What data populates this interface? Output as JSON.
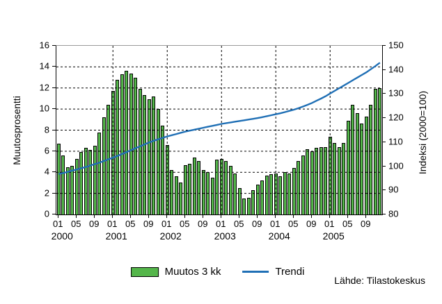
{
  "legend": {
    "bars_label": "Muutos 3 kk",
    "trend_label": "Trendi"
  },
  "source_label": "Lähde: Tilastokeskus",
  "colors": {
    "bar_fill": "#54B64A",
    "bar_border": "#000000",
    "trend_line": "#1F6FB5",
    "grid_line": "#000000",
    "frame_top": "#9a9a9a"
  },
  "chart_data": {
    "type": "bar",
    "title": "",
    "xlabel": "",
    "left_axis": {
      "label": "Muutosprosentti",
      "min": 0,
      "max": 16,
      "ticks": [
        0,
        2,
        4,
        6,
        8,
        10,
        12,
        14,
        16
      ]
    },
    "right_axis": {
      "label": "Indeksi (2000=100)",
      "min": 80,
      "max": 150,
      "ticks": [
        80,
        90,
        100,
        110,
        120,
        130,
        140,
        150
      ]
    },
    "x_axis": {
      "years": [
        "2000",
        "2001",
        "2002",
        "2003",
        "2004",
        "2005"
      ],
      "month_tick_labels": [
        "01",
        "05",
        "09"
      ],
      "month_tick_offsets": [
        0,
        4,
        8
      ],
      "months_per_year": 12
    },
    "grid": "dashed horizontal at every left tick, dashed vertical at every January",
    "legend_position": "bottom-center",
    "series": [
      {
        "name": "Muutos 3 kk",
        "type": "bar",
        "axis": "left",
        "values": [
          6.7,
          5.6,
          4.5,
          4.6,
          5.3,
          5.9,
          6.3,
          6.1,
          6.5,
          7.8,
          9.2,
          10.4,
          11.7,
          12.8,
          13.3,
          13.6,
          13.4,
          13.0,
          11.9,
          11.3,
          10.9,
          11.2,
          10.0,
          8.4,
          6.6,
          4.2,
          3.6,
          3.0,
          4.7,
          4.8,
          5.4,
          5.1,
          4.2,
          4.0,
          3.5,
          5.2,
          5.3,
          5.1,
          4.6,
          3.9,
          2.5,
          1.5,
          1.6,
          2.3,
          2.8,
          3.2,
          3.7,
          3.8,
          3.9,
          3.6,
          4.0,
          3.9,
          4.4,
          5.1,
          5.6,
          6.2,
          6.0,
          6.3,
          6.4,
          6.4,
          7.4,
          6.8,
          6.4,
          6.8,
          8.9,
          10.4,
          9.6,
          8.6,
          9.3,
          10.4,
          11.9,
          12.0
        ]
      },
      {
        "name": "Trendi",
        "type": "line",
        "axis": "right",
        "values": [
          96.8,
          97.2,
          97.7,
          98.2,
          98.7,
          99.2,
          99.7,
          100.3,
          100.9,
          101.5,
          102.2,
          102.9,
          103.6,
          104.3,
          105.1,
          105.9,
          106.7,
          107.5,
          108.3,
          109.1,
          109.9,
          110.6,
          111.2,
          111.8,
          112.4,
          112.9,
          113.4,
          113.9,
          114.4,
          114.8,
          115.2,
          115.6,
          116.0,
          116.4,
          116.8,
          117.2,
          117.6,
          117.9,
          118.2,
          118.5,
          118.8,
          119.1,
          119.4,
          119.7,
          120.0,
          120.4,
          120.8,
          121.2,
          121.6,
          122.0,
          122.5,
          123.0,
          123.5,
          124.1,
          124.8,
          125.5,
          126.3,
          127.2,
          128.1,
          129.1,
          130.2,
          131.3,
          132.4,
          133.5,
          134.6,
          135.7,
          136.8,
          137.9,
          139.0,
          140.3,
          141.6,
          143.0
        ]
      }
    ]
  }
}
